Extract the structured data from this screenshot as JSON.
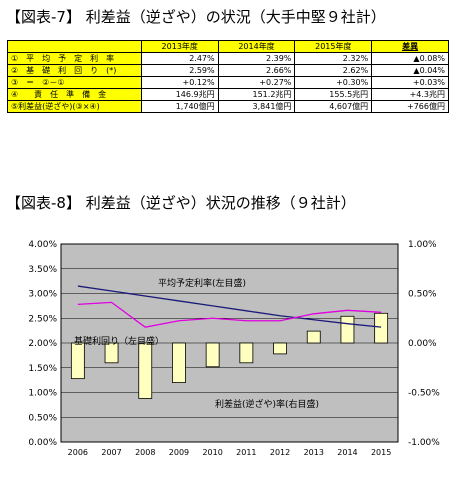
{
  "titles": {
    "table": "【図表-7】 利差益（逆ざや）の状況（大手中堅９社計）",
    "chart": "【図表-8】 利差益（逆ざや）状況の推移（９社計）"
  },
  "table": {
    "headers": [
      "",
      "2013年度",
      "2014年度",
      "2015年度",
      "差異"
    ],
    "rows": [
      {
        "label": "①　平　均　予　定　利　率",
        "v": [
          "2.47%",
          "2.39%",
          "2.32%",
          "▲0.08%"
        ]
      },
      {
        "label": "②　基　礎　利　回　り　(*)",
        "v": [
          "2.59%",
          "2.66%",
          "2.62%",
          "▲0.04%"
        ]
      },
      {
        "label": "③　＝　②－①",
        "v": [
          "+0.12%",
          "+0.27%",
          "+0.30%",
          "+0.03%"
        ]
      },
      {
        "label": "④　　責　任　準　備　金",
        "v": [
          "146.9兆円",
          "151.2兆円",
          "155.5兆円",
          "+4.3兆円"
        ]
      },
      {
        "label": "⑤利差益(逆ざや)(③×④)",
        "v": [
          "1,740億円",
          "3,841億円",
          "4,607億円",
          "+766億円"
        ]
      }
    ]
  },
  "chart_data": {
    "type": "bar+line",
    "categories": [
      "2006",
      "2007",
      "2008",
      "2009",
      "2010",
      "2011",
      "2012",
      "2013",
      "2014",
      "2015"
    ],
    "left_axis": {
      "min": 0,
      "max": 4,
      "step": 0.5,
      "ticks": [
        "0.00%",
        "0.50%",
        "1.00%",
        "1.50%",
        "2.00%",
        "2.50%",
        "3.00%",
        "3.50%",
        "4.00%"
      ]
    },
    "right_axis": {
      "min": -1,
      "max": 1,
      "step": 0.5,
      "ticks": [
        "-1.00%",
        "-0.50%",
        "0.00%",
        "0.50%",
        "1.00%"
      ]
    },
    "series": [
      {
        "name": "平均予定利率(左目盛)",
        "axis": "left",
        "kind": "line",
        "color": "#1a1a7a",
        "values": [
          3.15,
          3.05,
          2.95,
          2.85,
          2.75,
          2.65,
          2.55,
          2.47,
          2.39,
          2.32
        ]
      },
      {
        "name": "基礎利回り(左目盛)",
        "axis": "left",
        "kind": "line",
        "color": "#e000e0",
        "values": [
          2.78,
          2.82,
          2.32,
          2.45,
          2.5,
          2.45,
          2.45,
          2.59,
          2.66,
          2.62
        ]
      },
      {
        "name": "利差益(逆ざや)率(右目盛)",
        "axis": "right",
        "kind": "bar",
        "color": "#ffffc0",
        "values": [
          -0.36,
          -0.2,
          -0.56,
          -0.4,
          -0.24,
          -0.2,
          -0.11,
          0.12,
          0.27,
          0.3
        ]
      }
    ],
    "annotations": [
      "平均予定利率(左目盛)",
      "基礎利回り（左目盛）",
      "利差益(逆ざや)率(右目盛)"
    ],
    "background": "#bfbfbf",
    "grid": true
  }
}
